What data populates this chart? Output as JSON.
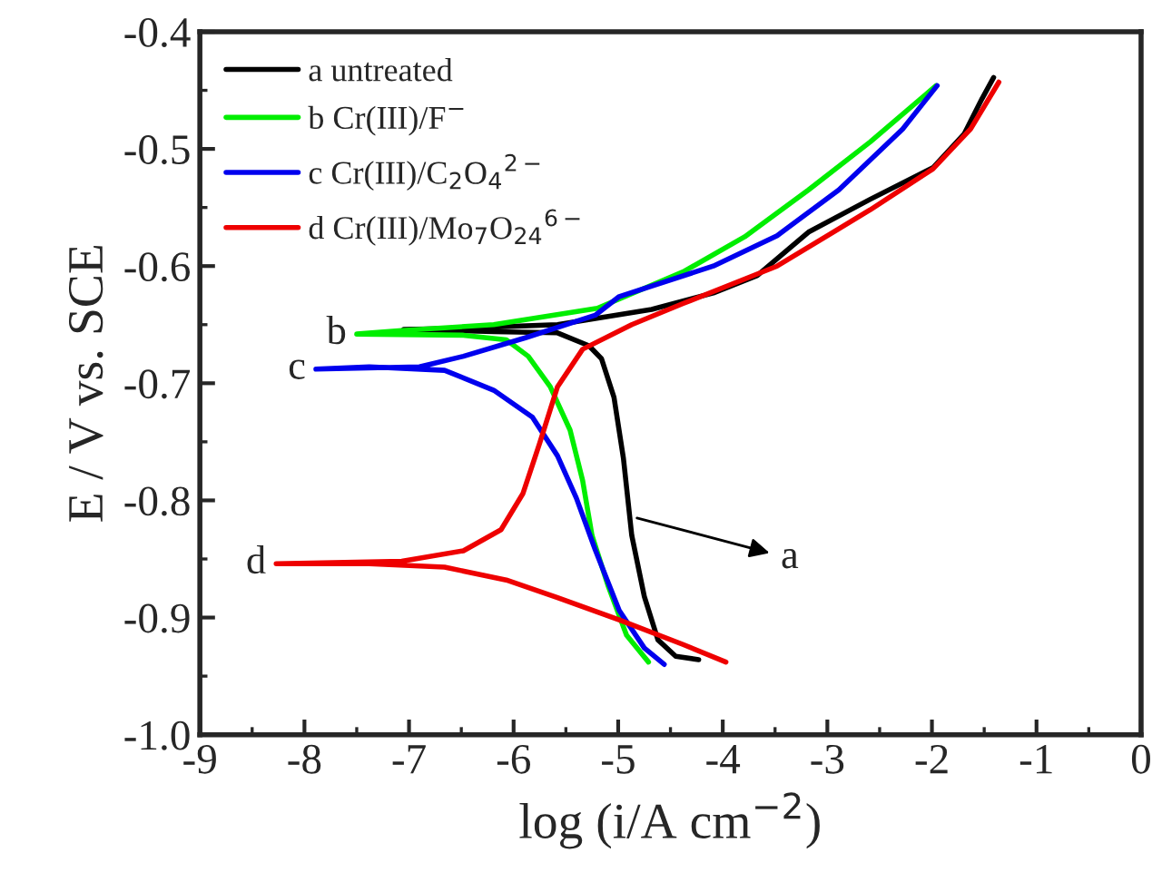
{
  "chart_data": {
    "type": "line",
    "xlabel": "log (i/A cm$^{−2}$)",
    "ylabel": "E / V vs. SCE",
    "xlim": [
      -9,
      0
    ],
    "xticks": [
      -9,
      -8,
      -7,
      -6,
      -5,
      -4,
      -3,
      -2,
      -1,
      0
    ],
    "ylim": [
      -1.0,
      -0.4
    ],
    "yticks": [
      {
        "value": -1.0,
        "label": "-1.0"
      },
      -0.9,
      -0.8,
      -0.7,
      -0.6,
      -0.5,
      -0.4
    ],
    "grid": false,
    "legend": "top left",
    "marker": "none",
    "line_style": "solid",
    "series": [
      {
        "name": "a untreated",
        "color": "#000000",
        "x": [
          -4.23,
          -4.45,
          -4.62,
          -4.75,
          -4.87,
          -4.95,
          -5.04,
          -5.16,
          -5.28,
          -5.58,
          -6.19,
          -7.05,
          -6.48,
          -5.58,
          -4.68,
          -4.09,
          -3.67,
          -3.18,
          -2.59,
          -1.99,
          -1.69,
          -1.52,
          -1.41
        ],
        "values": [
          -0.936,
          -0.933,
          -0.919,
          -0.882,
          -0.83,
          -0.764,
          -0.712,
          -0.679,
          -0.668,
          -0.657,
          -0.656,
          -0.654,
          -0.653,
          -0.65,
          -0.637,
          -0.623,
          -0.608,
          -0.571,
          -0.543,
          -0.516,
          -0.487,
          -0.457,
          -0.439
        ]
      },
      {
        "name": "b Cr(III)/F$^{−}$",
        "color": "#00ee00",
        "x": [
          -4.71,
          -4.92,
          -5.1,
          -5.25,
          -5.34,
          -5.46,
          -5.65,
          -5.86,
          -6.07,
          -6.48,
          -7.5,
          -7.07,
          -6.19,
          -5.2,
          -4.38,
          -3.79,
          -3.18,
          -2.59,
          -1.96
        ],
        "values": [
          -0.938,
          -0.915,
          -0.872,
          -0.83,
          -0.783,
          -0.74,
          -0.703,
          -0.677,
          -0.663,
          -0.659,
          -0.658,
          -0.655,
          -0.65,
          -0.636,
          -0.605,
          -0.575,
          -0.535,
          -0.494,
          -0.446
        ]
      },
      {
        "name": "c Cr(III)/C$_{2}$O$_{4}$$^{2−}$",
        "color": "#0000ee",
        "x": [
          -4.56,
          -4.75,
          -4.99,
          -5.22,
          -5.4,
          -5.58,
          -5.82,
          -6.19,
          -6.66,
          -7.38,
          -7.89,
          -6.9,
          -6.48,
          -5.88,
          -5.22,
          -4.99,
          -4.09,
          -3.48,
          -2.89,
          -2.28,
          -1.95
        ],
        "values": [
          -0.94,
          -0.926,
          -0.894,
          -0.842,
          -0.798,
          -0.762,
          -0.729,
          -0.706,
          -0.689,
          -0.686,
          -0.688,
          -0.686,
          -0.677,
          -0.661,
          -0.642,
          -0.626,
          -0.6,
          -0.574,
          -0.535,
          -0.483,
          -0.446
        ]
      },
      {
        "name": "d Cr(III)/Mo$_{7}$O$_{24}$$^{6−}$",
        "color": "#ee0000",
        "x": [
          -3.97,
          -4.38,
          -4.99,
          -5.58,
          -6.07,
          -6.66,
          -7.38,
          -8.27,
          -7.07,
          -6.48,
          -6.12,
          -5.91,
          -5.75,
          -5.58,
          -5.34,
          -4.87,
          -4.38,
          -3.48,
          -2.59,
          -1.99,
          -1.63,
          -1.36
        ],
        "values": [
          -0.938,
          -0.923,
          -0.902,
          -0.883,
          -0.868,
          -0.857,
          -0.854,
          -0.854,
          -0.852,
          -0.843,
          -0.825,
          -0.794,
          -0.751,
          -0.703,
          -0.671,
          -0.65,
          -0.632,
          -0.6,
          -0.552,
          -0.517,
          -0.483,
          -0.443
        ]
      }
    ],
    "annotations": [
      {
        "text": "a",
        "x": -4.82,
        "y": -0.815
      },
      {
        "text": "b",
        "x": -7.5,
        "y": -0.658
      },
      {
        "text": "c",
        "x": -7.89,
        "y": -0.688
      },
      {
        "text": "d",
        "x": -8.27,
        "y": -0.854
      }
    ]
  }
}
